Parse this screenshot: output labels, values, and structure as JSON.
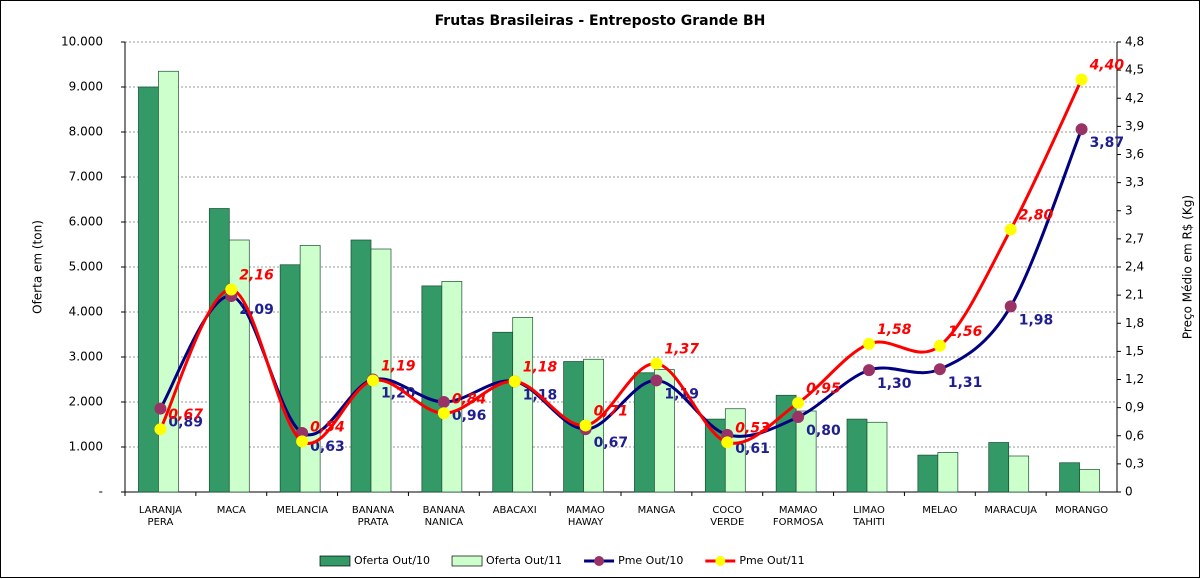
{
  "chart_data": {
    "type": "bar-line",
    "title": "Frutas Brasileiras - Entreposto Grande BH",
    "y_label": "Oferta em (ton)",
    "y2_label": "Preço Médio em R$ (Kg)",
    "categories": [
      "LARANJA PERA",
      "MACA",
      "MELANCIA",
      "BANANA PRATA",
      "BANANA NANICA",
      "ABACAXI",
      "MAMAO HAWAY",
      "MANGA",
      "COCO VERDE",
      "MAMAO FORMOSA",
      "LIMAO TAHITI",
      "MELAO",
      "MARACUJA",
      "MORANGO"
    ],
    "series": [
      {
        "name": "Oferta Out/10",
        "type": "bar",
        "color": "#339966",
        "values": [
          9000,
          6300,
          5050,
          5600,
          4580,
          3550,
          2900,
          2650,
          1620,
          2150,
          1620,
          820,
          1100,
          650
        ]
      },
      {
        "name": "Oferta Out/11",
        "type": "bar",
        "color": "#ccffcc",
        "values": [
          9350,
          5600,
          5480,
          5400,
          4680,
          3880,
          2950,
          2720,
          1850,
          1800,
          1550,
          880,
          800,
          500
        ]
      },
      {
        "name": "Pme Out/10",
        "type": "line",
        "axis": "y2",
        "color": "#000080",
        "marker_color": "#993366",
        "label_color": "#1f1f8f",
        "values": [
          0.89,
          2.09,
          0.63,
          1.2,
          0.96,
          1.18,
          0.67,
          1.19,
          0.61,
          0.8,
          1.3,
          1.31,
          1.98,
          3.87
        ],
        "value_labels": [
          "0,89",
          "2,09",
          "0,63",
          "1,20",
          "0,96",
          "1,18",
          "0,67",
          "1,19",
          "0,61",
          "0,80",
          "1,30",
          "1,31",
          "1,98",
          "3,87"
        ]
      },
      {
        "name": "Pme Out/11",
        "type": "line",
        "axis": "y2",
        "color": "#ff0000",
        "marker_color": "#ffff00",
        "label_color": "#ff0000",
        "values": [
          0.67,
          2.16,
          0.54,
          1.19,
          0.84,
          1.18,
          0.71,
          1.37,
          0.53,
          0.95,
          1.58,
          1.56,
          2.8,
          4.4
        ],
        "value_labels": [
          "0,67",
          "2,16",
          "0,54",
          "1,19",
          "0,84",
          "1,18",
          "0,71",
          "1,37",
          "0,53",
          "0,95",
          "1,58",
          "1,56",
          "2,80",
          "4,40"
        ]
      }
    ],
    "ylim": [
      0,
      10000
    ],
    "yticks": [
      {
        "value": 0,
        "label": "-"
      },
      {
        "value": 1000,
        "label": "1.000"
      },
      {
        "value": 2000,
        "label": "2.000"
      },
      {
        "value": 3000,
        "label": "3.000"
      },
      {
        "value": 4000,
        "label": "4.000"
      },
      {
        "value": 5000,
        "label": "5.000"
      },
      {
        "value": 6000,
        "label": "6.000"
      },
      {
        "value": 7000,
        "label": "7.000"
      },
      {
        "value": 8000,
        "label": "8.000"
      },
      {
        "value": 9000,
        "label": "9.000"
      },
      {
        "value": 10000,
        "label": "10.000"
      }
    ],
    "y2lim": [
      0,
      4.8
    ],
    "y2ticks": [
      0,
      {
        "value": 0.3,
        "label": "0,3"
      },
      {
        "value": 0.6,
        "label": "0,6"
      },
      {
        "value": 0.9,
        "label": "0,9"
      },
      {
        "value": 1.2,
        "label": "1,2"
      },
      {
        "value": 1.5,
        "label": "1,5"
      },
      {
        "value": 1.8,
        "label": "1,8"
      },
      {
        "value": 2.1,
        "label": "2,1"
      },
      {
        "value": 2.4,
        "label": "2,4"
      },
      {
        "value": 2.7,
        "label": "2,7"
      },
      3,
      {
        "value": 3.3,
        "label": "3,3"
      },
      {
        "value": 3.6,
        "label": "3,6"
      },
      {
        "value": 3.9,
        "label": "3,9"
      },
      {
        "value": 4.2,
        "label": "4,2"
      },
      {
        "value": 4.5,
        "label": "4,5"
      },
      {
        "value": 4.8,
        "label": "4,8"
      }
    ],
    "grid": true,
    "legend": "bottom"
  }
}
